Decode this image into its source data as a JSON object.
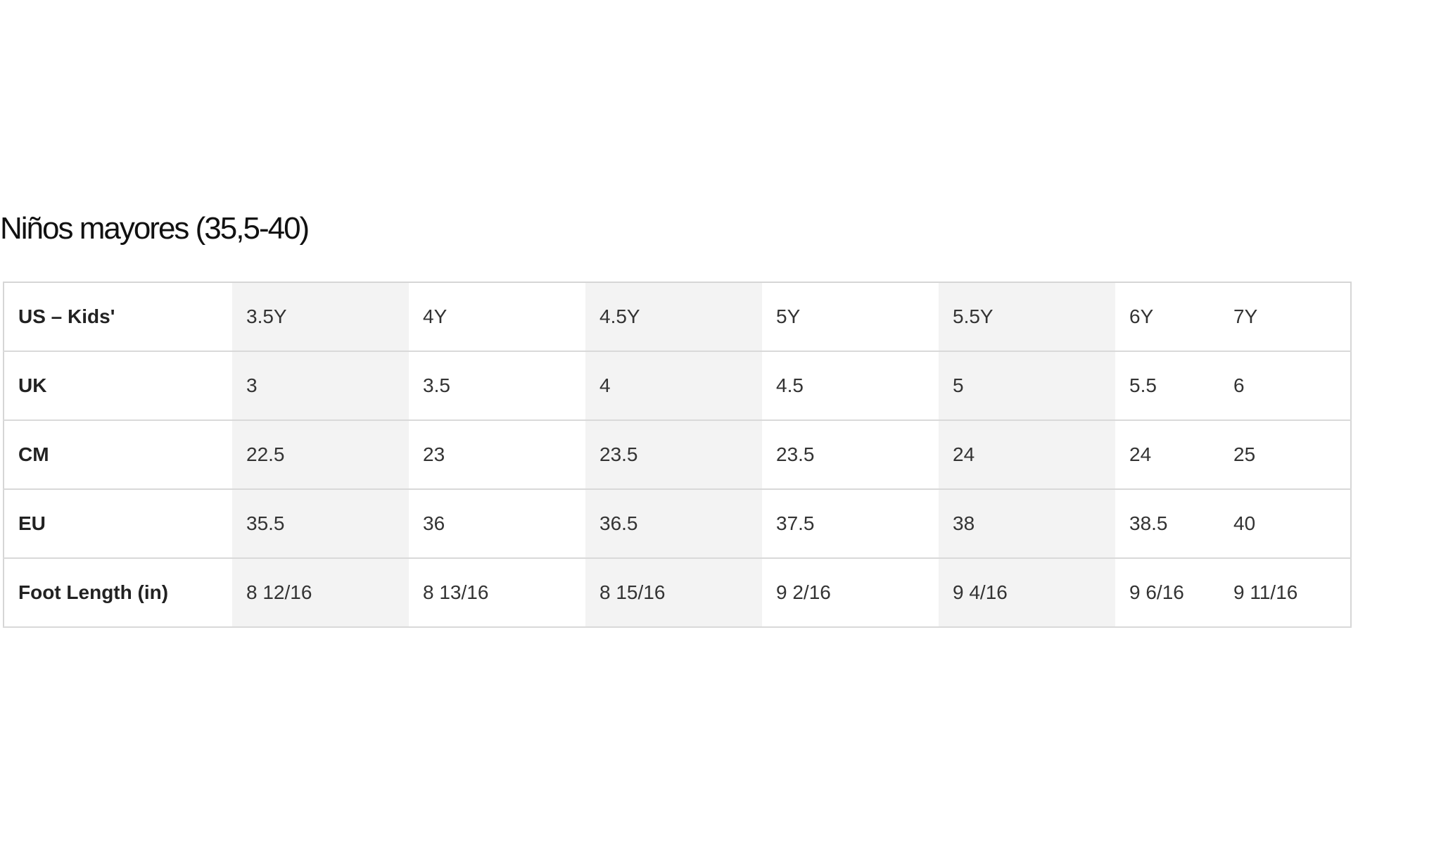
{
  "title": "Niños mayores (35,5-40)",
  "table": {
    "rows": [
      {
        "label": "US – Kids'",
        "values": [
          "3.5Y",
          "4Y",
          "4.5Y",
          "5Y",
          "5.5Y",
          "6Y",
          "7Y"
        ]
      },
      {
        "label": "UK",
        "values": [
          "3",
          "3.5",
          "4",
          "4.5",
          "5",
          "5.5",
          "6"
        ]
      },
      {
        "label": "CM",
        "values": [
          "22.5",
          "23",
          "23.5",
          "23.5",
          "24",
          "24",
          "25"
        ]
      },
      {
        "label": "EU",
        "values": [
          "35.5",
          "36",
          "36.5",
          "37.5",
          "38",
          "38.5",
          "40"
        ]
      },
      {
        "label": "Foot Length (in)",
        "values": [
          "8 12/16",
          "8 13/16",
          "8 15/16",
          "9 2/16",
          "9 4/16",
          "9 6/16",
          "9 11/16"
        ]
      }
    ]
  },
  "colors": {
    "shaded_column": "#f3f3f3",
    "border": "#d9d9d9"
  }
}
